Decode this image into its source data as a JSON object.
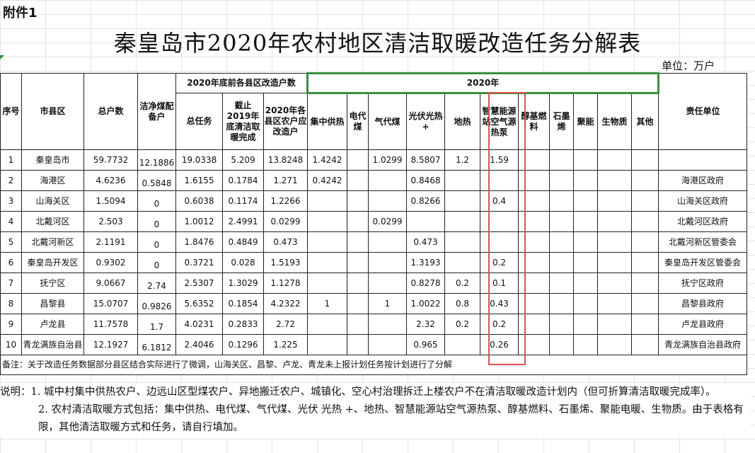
{
  "attachment_label": "附件1",
  "title": "秦皇岛市2020年农村地区清洁取暖改造任务分解表",
  "unit_label": "单位：万户",
  "headers": {
    "seq": "序号",
    "county": "市县区",
    "total_households": "总户数",
    "clean_coal": "洁净煤配备户",
    "group_before": "2020年底前各县区改造户数",
    "total_task": "总任务",
    "completed_2019": "截止2019年底清洁取暖完成",
    "due_2020": "2020年各县区农户应改造户",
    "group_2020": "2020年",
    "central_heating": "集中供热",
    "electric_coal": "电代煤",
    "gas_coal": "气代煤",
    "pv_thermal": "光伏光热+",
    "geothermal": "地热",
    "smart_heat_pump": "智慧能源站空气源热泵",
    "alcohol_fuel": "醇基燃料",
    "graphene": "石墨烯",
    "polymer": "聚能",
    "biomass": "生物质",
    "other": "其他",
    "responsible": "责任单位"
  },
  "rows": [
    {
      "seq": "1",
      "county": "秦皇岛市",
      "total": "59.7732",
      "clean_coal": "12.1886",
      "task": "19.0338",
      "done2019": "5.209",
      "due2020": "13.8248",
      "central": "1.4242",
      "electric": "",
      "gas": "1.0299",
      "pv": "8.5807",
      "geo": "1.2",
      "smart": "1.59",
      "alcohol": "",
      "graphene": "",
      "polymer": "",
      "biomass": "",
      "other": "",
      "resp": ""
    },
    {
      "seq": "2",
      "county": "海港区",
      "total": "4.6236",
      "clean_coal": "0.5848",
      "task": "1.6155",
      "done2019": "0.1784",
      "due2020": "1.271",
      "central": "0.4242",
      "electric": "",
      "gas": "",
      "pv": "0.8468",
      "geo": "",
      "smart": "",
      "alcohol": "",
      "graphene": "",
      "polymer": "",
      "biomass": "",
      "other": "",
      "resp": "海港区政府"
    },
    {
      "seq": "3",
      "county": "山海关区",
      "total": "1.5094",
      "clean_coal": "0",
      "task": "0.6038",
      "done2019": "0.1174",
      "due2020": "1.2266",
      "central": "",
      "electric": "",
      "gas": "",
      "pv": "0.8266",
      "geo": "",
      "smart": "0.4",
      "alcohol": "",
      "graphene": "",
      "polymer": "",
      "biomass": "",
      "other": "",
      "resp": "山海关区政府"
    },
    {
      "seq": "4",
      "county": "北戴河区",
      "total": "2.503",
      "clean_coal": "0",
      "task": "1.0012",
      "done2019": "2.4991",
      "due2020": "0.0299",
      "central": "",
      "electric": "",
      "gas": "0.0299",
      "pv": "",
      "geo": "",
      "smart": "",
      "alcohol": "",
      "graphene": "",
      "polymer": "",
      "biomass": "",
      "other": "",
      "resp": "北戴河区政府"
    },
    {
      "seq": "5",
      "county": "北戴河新区",
      "total": "2.1191",
      "clean_coal": "0",
      "task": "1.8476",
      "done2019": "0.4849",
      "due2020": "0.473",
      "central": "",
      "electric": "",
      "gas": "",
      "pv": "0.473",
      "geo": "",
      "smart": "",
      "alcohol": "",
      "graphene": "",
      "polymer": "",
      "biomass": "",
      "other": "",
      "resp": "北戴河新区管委会"
    },
    {
      "seq": "6",
      "county": "秦皇岛开发区",
      "total": "0.9302",
      "clean_coal": "0",
      "task": "0.3721",
      "done2019": "0.028",
      "due2020": "1.5193",
      "central": "",
      "electric": "",
      "gas": "",
      "pv": "1.3193",
      "geo": "",
      "smart": "0.2",
      "alcohol": "",
      "graphene": "",
      "polymer": "",
      "biomass": "",
      "other": "",
      "resp": "秦皇岛开发区管委会"
    },
    {
      "seq": "7",
      "county": "抚宁区",
      "total": "9.0667",
      "clean_coal": "2.74",
      "task": "2.5307",
      "done2019": "1.3029",
      "due2020": "1.1278",
      "central": "",
      "electric": "",
      "gas": "",
      "pv": "0.8278",
      "geo": "0.2",
      "smart": "0.1",
      "alcohol": "",
      "graphene": "",
      "polymer": "",
      "biomass": "",
      "other": "",
      "resp": "抚宁区政府"
    },
    {
      "seq": "8",
      "county": "昌黎县",
      "total": "15.0707",
      "clean_coal": "0.9826",
      "task": "5.6352",
      "done2019": "0.1854",
      "due2020": "4.2322",
      "central": "1",
      "electric": "",
      "gas": "1",
      "pv": "1.0022",
      "geo": "0.8",
      "smart": "0.43",
      "alcohol": "",
      "graphene": "",
      "polymer": "",
      "biomass": "",
      "other": "",
      "resp": "昌黎县政府"
    },
    {
      "seq": "9",
      "county": "卢龙县",
      "total": "11.7578",
      "clean_coal": "1.7",
      "task": "4.0231",
      "done2019": "0.2833",
      "due2020": "2.72",
      "central": "",
      "electric": "",
      "gas": "",
      "pv": "2.32",
      "geo": "0.2",
      "smart": "0.2",
      "alcohol": "",
      "graphene": "",
      "polymer": "",
      "biomass": "",
      "other": "",
      "resp": "卢龙县政府"
    },
    {
      "seq": "10",
      "county": "青龙满族自治县",
      "total": "12.1927",
      "clean_coal": "6.1812",
      "task": "2.4046",
      "done2019": "0.1296",
      "due2020": "1.225",
      "central": "",
      "electric": "",
      "gas": "",
      "pv": "0.965",
      "geo": "",
      "smart": "0.26",
      "alcohol": "",
      "graphene": "",
      "polymer": "",
      "biomass": "",
      "other": "",
      "resp": "青龙满族自治县政府"
    }
  ],
  "table_note": "备注：关于改造任务数据部分县区结合实际进行了微调，山海关区、昌黎、卢龙、青龙未上报计划任务按计划进行了分解",
  "explanation_1": "说明：1. 城中村集中供热农户、边远山区型煤农户、异地搬迁农户、城镇化、空心村治理拆迁上楼农户不在清洁取暖改造计划内（但可折算清洁取暖完成率）。",
  "explanation_2": "2. 农村清洁取暖方式包括：集中供热、电代煤、气代煤、光伏 光热 +、地热、智慧能源站空气源热泵、醇基燃料、石墨烯、聚能电暖、生物质。由于表格有限，其他清洁取暖方式和任务，请自行填加。",
  "colors": {
    "highlight_border": "#d9534f",
    "selected_cell": "#3b8f3e"
  }
}
